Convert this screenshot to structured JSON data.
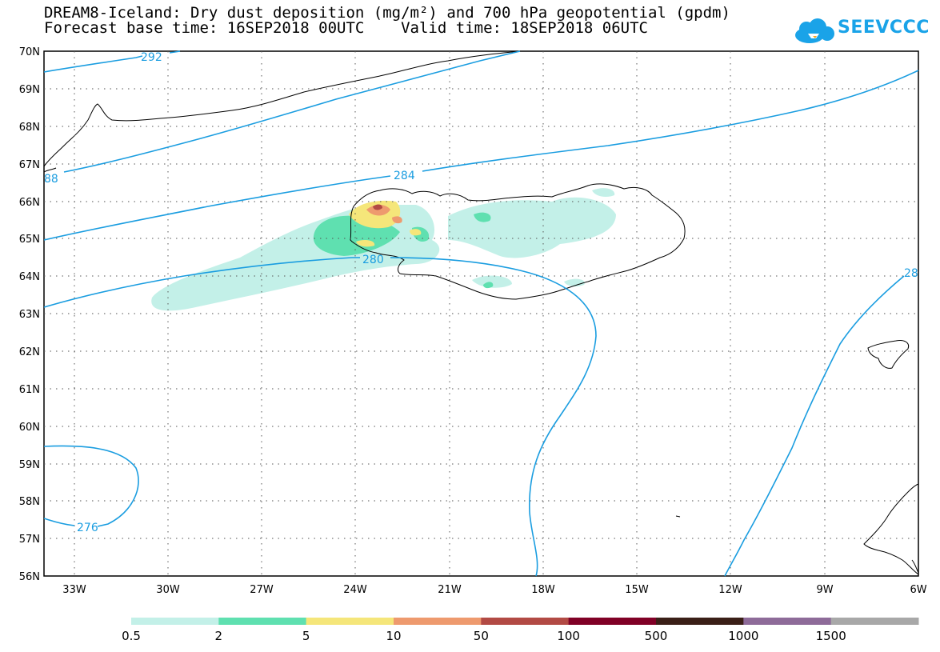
{
  "header": {
    "title_line1": "DREAM8-Iceland: Dry dust deposition (mg/m²) and 700 hPa geopotential (gpdm)",
    "title_line2": "Forecast base time: 16SEP2018 00UTC    Valid time: 18SEP2018 06UTC"
  },
  "logo": {
    "text": "SEEVCCC",
    "color": "#1aa3e8"
  },
  "map": {
    "lat_labels": [
      "70N",
      "69N",
      "68N",
      "67N",
      "66N",
      "65N",
      "64N",
      "63N",
      "62N",
      "61N",
      "60N",
      "59N",
      "58N",
      "57N",
      "56N"
    ],
    "lon_labels": [
      "33W",
      "30W",
      "27W",
      "24W",
      "21W",
      "18W",
      "15W",
      "12W",
      "9W",
      "6W"
    ],
    "contour_labels": [
      "292",
      "88",
      "284",
      "280",
      "276",
      "28"
    ],
    "contour_color": "#1a9de0"
  },
  "colorbar": {
    "colors": [
      "#c3f0e8",
      "#5fe0b0",
      "#f5e67a",
      "#ee9a6e",
      "#b24a44",
      "#800026",
      "#3a1f17",
      "#8e6b99",
      "#a8a8a8"
    ],
    "labels": [
      "0.5",
      "2",
      "5",
      "10",
      "50",
      "100",
      "500",
      "1000",
      "1500"
    ]
  }
}
